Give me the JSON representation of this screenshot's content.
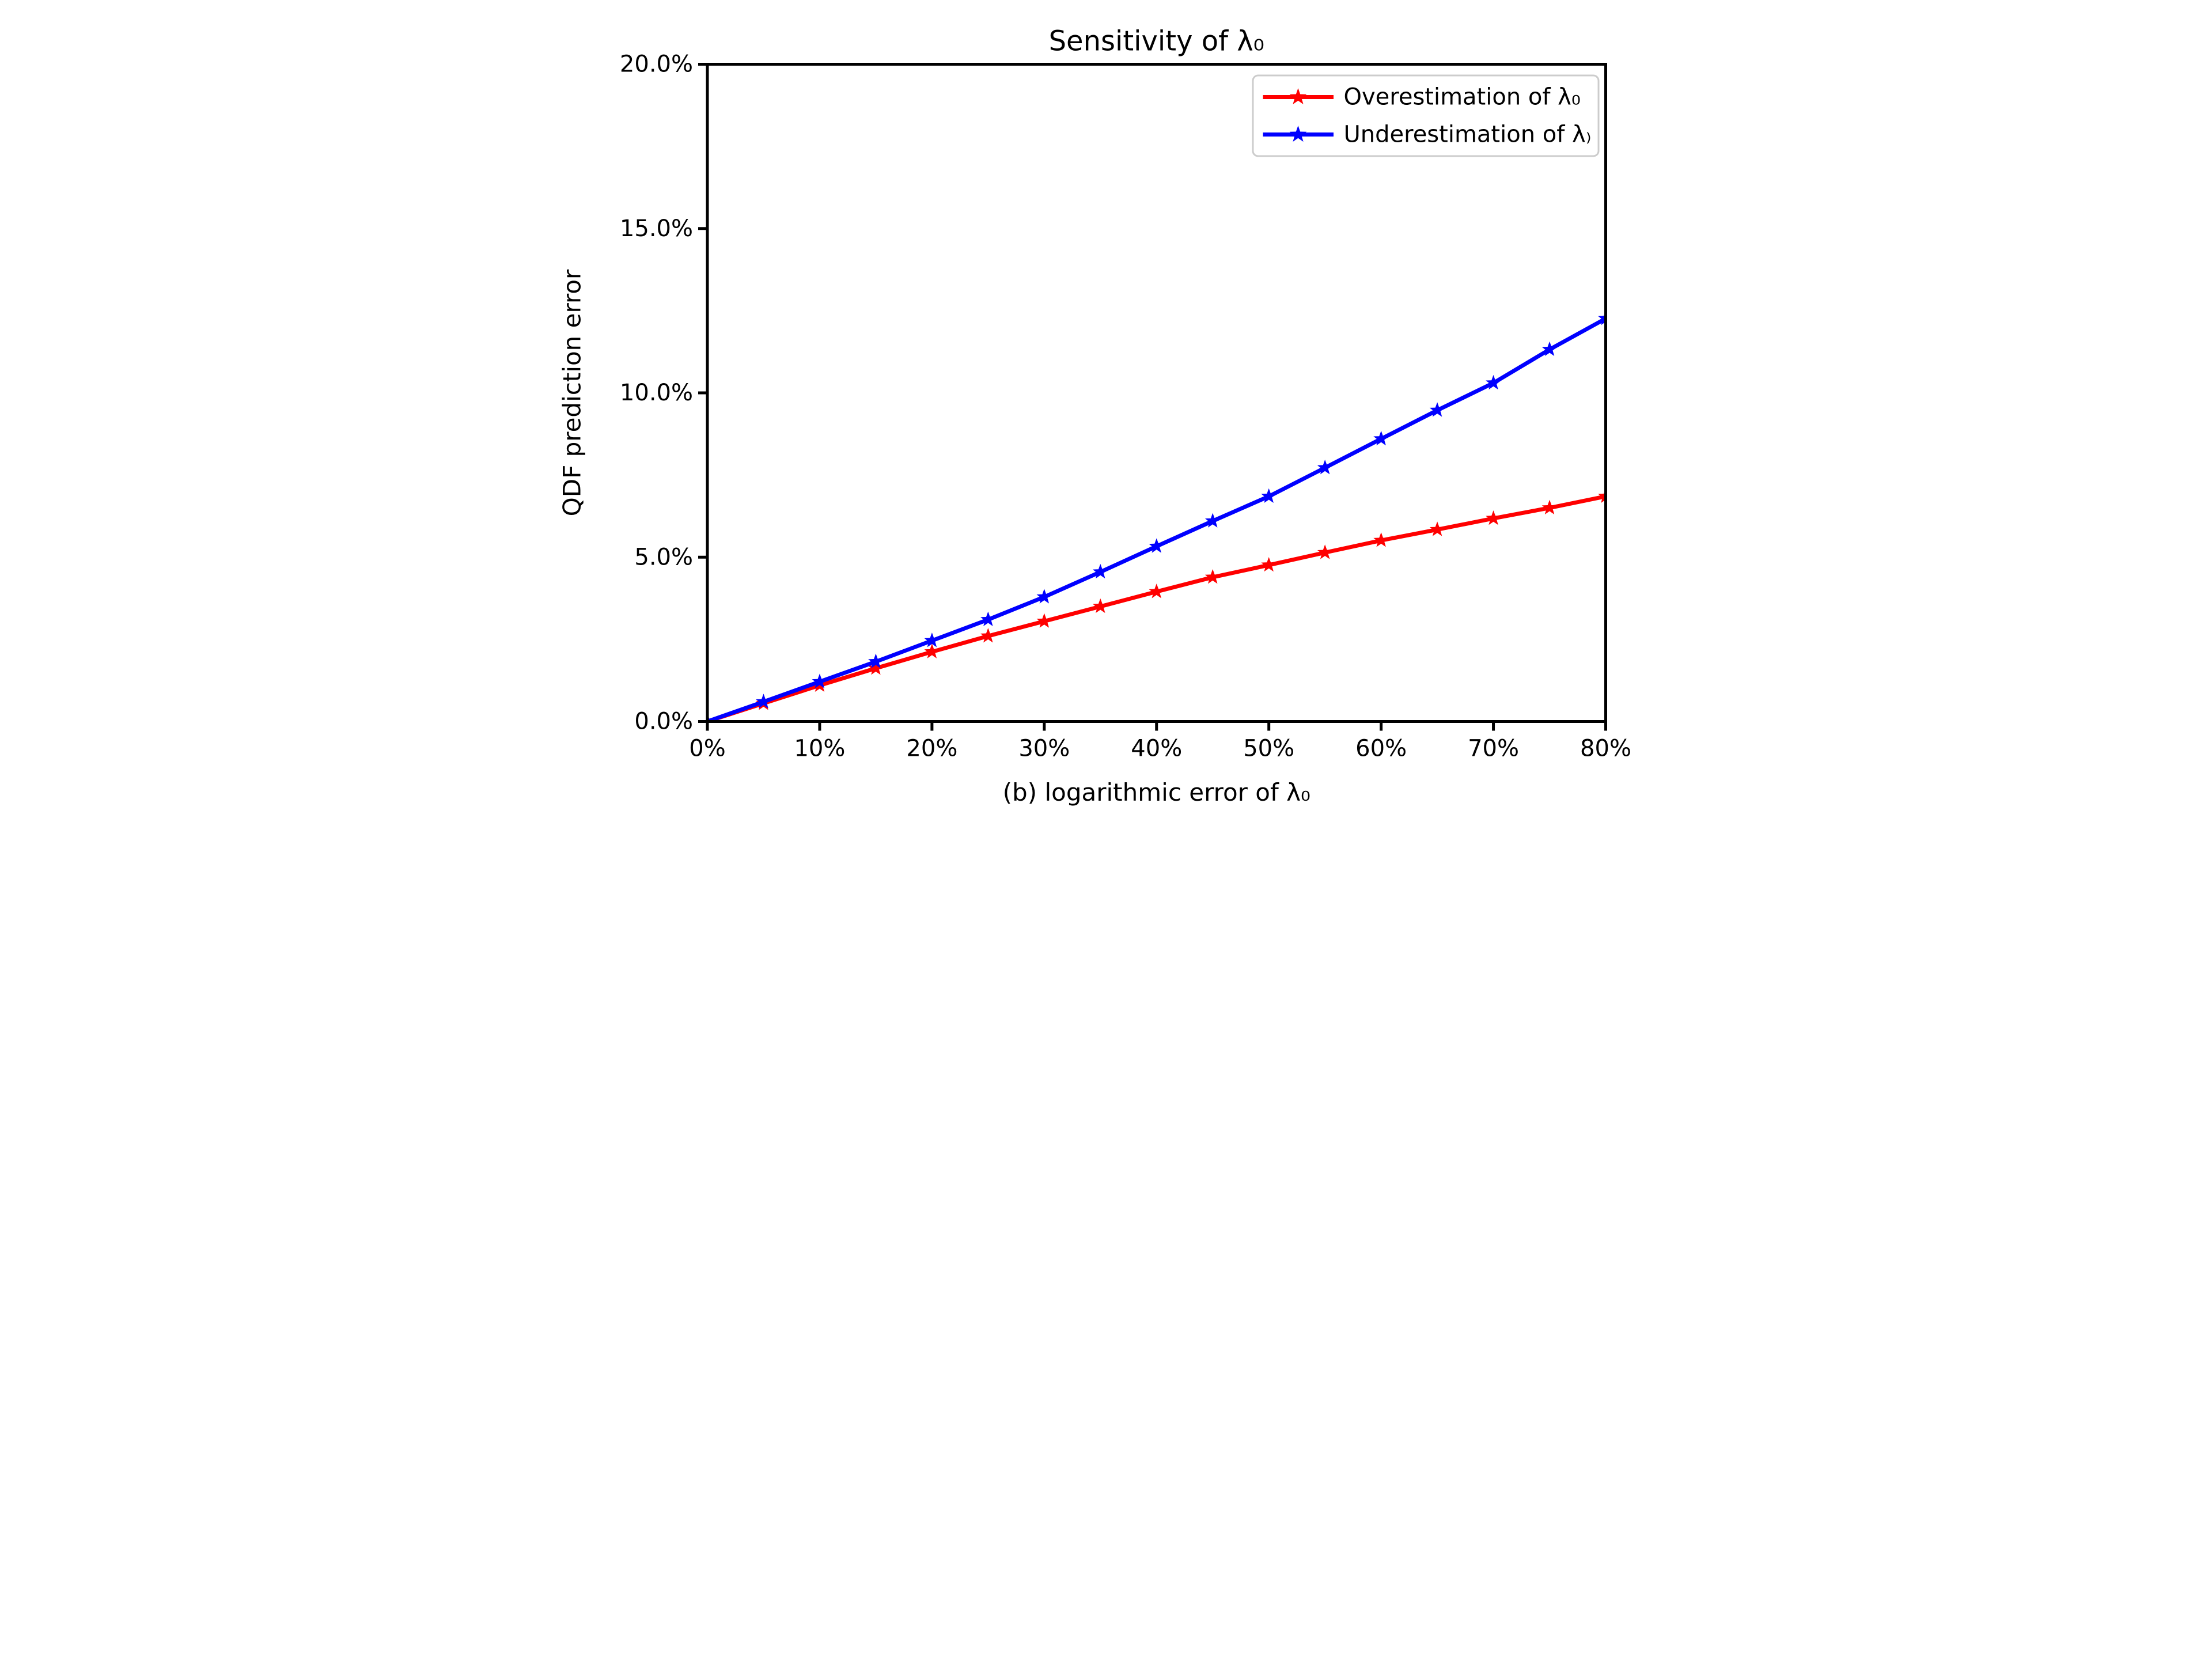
{
  "figure": {
    "background": "#ffffff",
    "axes_color": "#000000",
    "legend_border_color": "#cccccc"
  },
  "chart_data": {
    "type": "line",
    "title": "Sensitivity of λ₀",
    "xlabel": "(b) logarithmic error of λ₀",
    "ylabel": "QDF prediction error",
    "x": [
      0,
      5,
      10,
      15,
      20,
      25,
      30,
      35,
      40,
      45,
      50,
      55,
      60,
      65,
      70,
      75,
      80
    ],
    "x_unit": "%",
    "y_unit": "%",
    "xlim": [
      0,
      80
    ],
    "ylim": [
      0,
      20
    ],
    "grid": false,
    "legend_position": "upper right",
    "x_tick_values": [
      0,
      10,
      20,
      30,
      40,
      50,
      60,
      70,
      80
    ],
    "x_tick_labels": [
      "0%",
      "10%",
      "20%",
      "30%",
      "40%",
      "50%",
      "60%",
      "70%",
      "80%"
    ],
    "y_tick_values": [
      0,
      5,
      10,
      15,
      20
    ],
    "y_tick_labels": [
      "0.0%",
      "5.0%",
      "10.0%",
      "15.0%",
      "20.0%"
    ],
    "series": [
      {
        "name": "Overestimation of λ₀",
        "color": "#ff0000",
        "marker": "star",
        "values": [
          0,
          0.55,
          1.1,
          1.62,
          2.12,
          2.6,
          3.05,
          3.5,
          3.95,
          4.39,
          4.76,
          5.14,
          5.51,
          5.84,
          6.18,
          6.5,
          6.85
        ]
      },
      {
        "name": "Underestimation of λ₎",
        "color": "#0000ff",
        "marker": "star",
        "values": [
          0,
          0.6,
          1.21,
          1.82,
          2.46,
          3.1,
          3.79,
          4.55,
          5.33,
          6.1,
          6.85,
          7.72,
          8.6,
          9.47,
          10.3,
          11.32,
          12.26
        ]
      }
    ]
  }
}
